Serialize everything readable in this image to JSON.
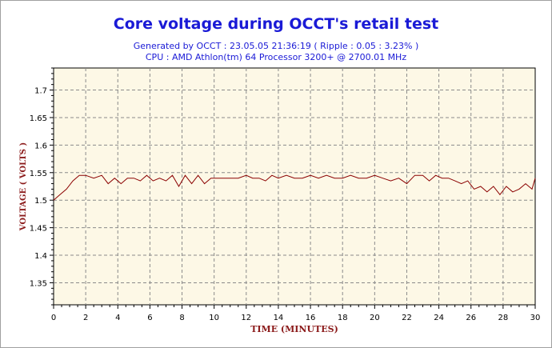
{
  "chart_data": {
    "type": "line",
    "title": "Core voltage during OCCT's retail test",
    "subtitle_lines": [
      "Generated by OCCT : 23.05.05 21:36:19 ( Ripple : 0.05 : 3.23% )",
      "CPU : AMD Athlon(tm) 64 Processor 3200+ @ 2700.01 MHz"
    ],
    "xlabel": "TIME (MINUTES)",
    "ylabel": "VOLTAGE ( VOLTS )",
    "xlim": [
      0,
      30
    ],
    "ylim": [
      1.31,
      1.74
    ],
    "x_ticks": [
      "0",
      "2",
      "4",
      "6",
      "8",
      "10",
      "12",
      "14",
      "16",
      "18",
      "20",
      "22",
      "24",
      "26",
      "28",
      "30"
    ],
    "y_ticks": [
      "1.35",
      "1.4",
      "1.45",
      "1.5",
      "1.55",
      "1.6",
      "1.65",
      "1.7"
    ],
    "grid": true,
    "series": [
      {
        "x": [
          0,
          0.4,
          0.8,
          1.2,
          1.6,
          2.0,
          2.5,
          3.0,
          3.4,
          3.8,
          4.2,
          4.6,
          5.0,
          5.4,
          5.8,
          6.2,
          6.6,
          7.0,
          7.4,
          7.8,
          8.2,
          8.6,
          9.0,
          9.4,
          9.8,
          10.2,
          10.6,
          11.0,
          11.5,
          12.0,
          12.4,
          12.8,
          13.2,
          13.6,
          14.0,
          14.5,
          15.0,
          15.5,
          16.0,
          16.5,
          17.0,
          17.5,
          18.0,
          18.5,
          19.0,
          19.5,
          20.0,
          20.5,
          21.0,
          21.5,
          22.0,
          22.5,
          23.0,
          23.4,
          23.8,
          24.2,
          24.6,
          25.0,
          25.4,
          25.8,
          26.2,
          26.6,
          27.0,
          27.4,
          27.8,
          28.2,
          28.6,
          29.0,
          29.4,
          29.8,
          30.0
        ],
        "y": [
          1.5,
          1.51,
          1.52,
          1.535,
          1.545,
          1.545,
          1.54,
          1.545,
          1.53,
          1.54,
          1.53,
          1.54,
          1.54,
          1.535,
          1.545,
          1.535,
          1.54,
          1.535,
          1.545,
          1.525,
          1.545,
          1.53,
          1.545,
          1.53,
          1.54,
          1.54,
          1.54,
          1.54,
          1.54,
          1.545,
          1.54,
          1.54,
          1.535,
          1.545,
          1.54,
          1.545,
          1.54,
          1.54,
          1.545,
          1.54,
          1.545,
          1.54,
          1.54,
          1.545,
          1.54,
          1.54,
          1.545,
          1.54,
          1.535,
          1.54,
          1.53,
          1.545,
          1.545,
          1.535,
          1.545,
          1.54,
          1.54,
          1.535,
          1.53,
          1.535,
          1.52,
          1.525,
          1.515,
          1.525,
          1.51,
          1.525,
          1.515,
          1.52,
          1.53,
          1.52,
          1.54
        ],
        "color": "#8b0000"
      }
    ],
    "colors": {
      "title": "#1a1ad6",
      "axis_label": "#8b1a1a",
      "plot_background": "#fdf8e6",
      "grid": "#8a8a8a",
      "line": "#8b0000"
    }
  }
}
